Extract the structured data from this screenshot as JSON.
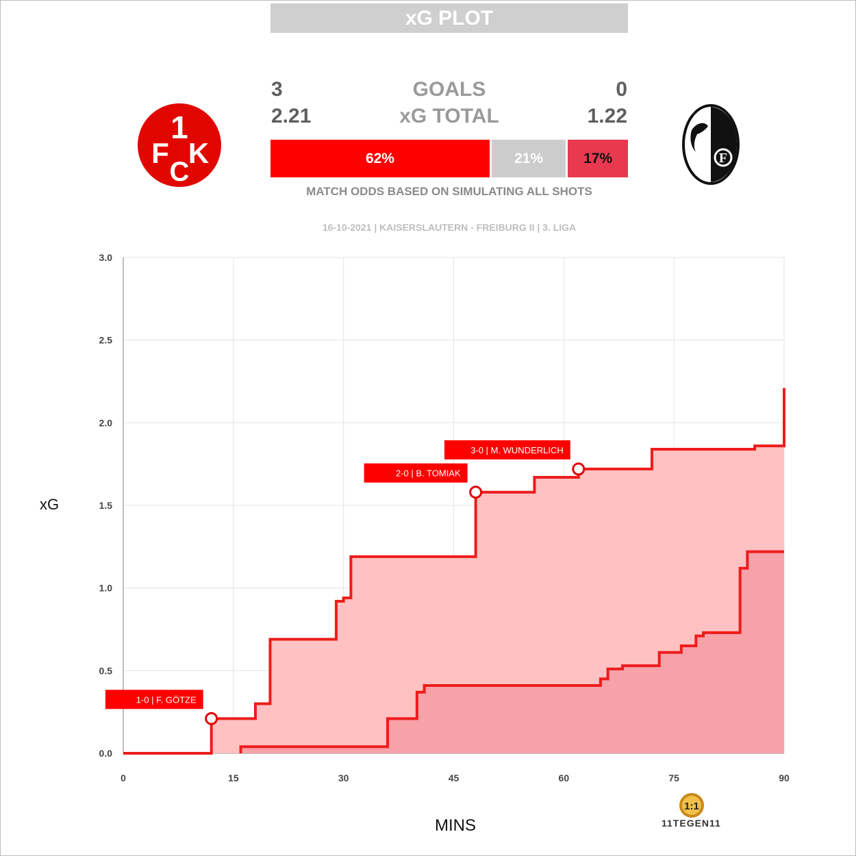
{
  "header": {
    "title": "xG PLOT"
  },
  "home": {
    "goals": "3",
    "xg_total": "2.21",
    "logo_text": "1FCK",
    "color": "#e10600"
  },
  "away": {
    "goals": "0",
    "xg_total": "1.22"
  },
  "labels": {
    "goals": "GOALS",
    "xg_total": "xG TOTAL"
  },
  "odds": {
    "home": "62%",
    "draw": "21%",
    "away": "17%",
    "home_share": 0.62,
    "draw_share": 0.21,
    "away_share": 0.17,
    "note": "MATCH ODDS BASED ON SIMULATING ALL SHOTS",
    "colors": {
      "home": "#ff0000",
      "draw": "#cccccc",
      "away": "#e8394e"
    }
  },
  "match_info": "16-10-2021 | KAISERSLAUTERN - FREIBURG II | 3. LIGA",
  "brand": {
    "text": "11TEGEN11"
  },
  "chart_data": {
    "type": "area",
    "xlabel": "MINS",
    "ylabel": "xG",
    "xlim": [
      0,
      90
    ],
    "ylim": [
      0,
      3.0
    ],
    "x_ticks": [
      "0",
      "15",
      "30",
      "45",
      "60",
      "75",
      "90"
    ],
    "y_ticks": [
      "0.0",
      "0.5",
      "1.0",
      "1.5",
      "2.0",
      "2.5",
      "3.0"
    ],
    "grid": true,
    "series": [
      {
        "team": "home",
        "line_color": "#ee1c1c",
        "fill_color": "#ffc1c1",
        "steps": [
          [
            0,
            0
          ],
          [
            12,
            0.21
          ],
          [
            18,
            0.3
          ],
          [
            20,
            0.69
          ],
          [
            29,
            0.92
          ],
          [
            30,
            0.94
          ],
          [
            31,
            1.19
          ],
          [
            48,
            1.58
          ],
          [
            56,
            1.67
          ],
          [
            62,
            1.72
          ],
          [
            72,
            1.84
          ],
          [
            86,
            1.86
          ],
          [
            90,
            2.21
          ]
        ]
      },
      {
        "team": "away",
        "line_color": "#ee1c1c",
        "fill_color": "#f7a1a8",
        "start": 16,
        "steps": [
          [
            16,
            0.04
          ],
          [
            36,
            0.21
          ],
          [
            40,
            0.37
          ],
          [
            41,
            0.41
          ],
          [
            65,
            0.45
          ],
          [
            66,
            0.51
          ],
          [
            68,
            0.53
          ],
          [
            73,
            0.61
          ],
          [
            76,
            0.65
          ],
          [
            78,
            0.71
          ],
          [
            79,
            0.73
          ],
          [
            84,
            1.12
          ],
          [
            85,
            1.22
          ],
          [
            90,
            1.22
          ]
        ]
      }
    ],
    "goals": [
      {
        "minute": 12,
        "xg": 0.21,
        "label": "1-0 | F. GÖTZE",
        "label_side": "left"
      },
      {
        "minute": 48,
        "xg": 1.58,
        "label": "2-0 | B. TOMIAK",
        "label_side": "left"
      },
      {
        "minute": 62,
        "xg": 1.72,
        "label": "3-0 | M. WUNDERLICH",
        "label_side": "left"
      }
    ]
  }
}
